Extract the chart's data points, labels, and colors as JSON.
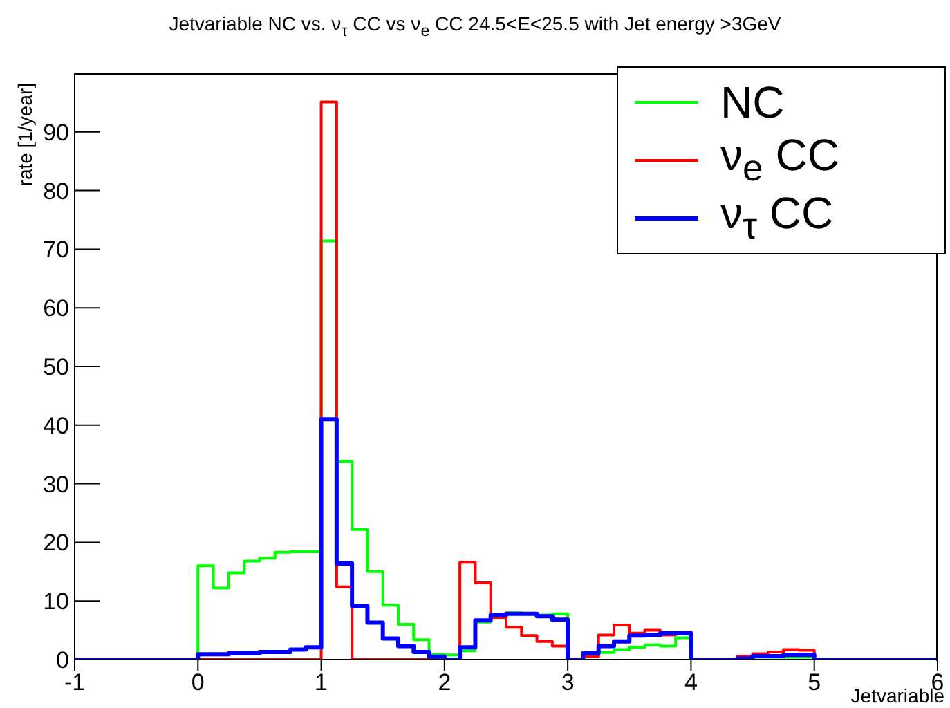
{
  "chart_data": {
    "type": "histogram",
    "title": "Jetvariable NC vs. ν$_{τ}$ CC vs ν$_{e}$ CC 24.5<E<25.5 with Jet energy >3GeV",
    "xlabel": "Jetvariable",
    "ylabel": "rate [1/year]",
    "bins": [
      -1,
      -0.875,
      -0.75,
      -0.625,
      -0.5,
      -0.375,
      -0.25,
      -0.125,
      0,
      0.125,
      0.25,
      0.375,
      0.5,
      0.625,
      0.75,
      0.875,
      1,
      1.125,
      1.25,
      1.375,
      1.5,
      1.625,
      1.75,
      1.875,
      2,
      2.125,
      2.25,
      2.375,
      2.5,
      2.625,
      2.75,
      2.875,
      3,
      3.125,
      3.25,
      3.375,
      3.5,
      3.625,
      3.75,
      3.875,
      4,
      4.125,
      4.25,
      4.375,
      4.5,
      4.625,
      4.75,
      4.875,
      5,
      5.125,
      5.25,
      5.375,
      5.5,
      5.625,
      5.75,
      5.875,
      6
    ],
    "series": [
      {
        "name": "NC",
        "color": "#00ff00",
        "values": [
          0,
          0,
          0,
          0,
          0,
          0,
          0,
          0,
          16.0,
          12.2,
          14.8,
          16.8,
          17.3,
          18.3,
          18.4,
          18.4,
          71.4,
          33.8,
          22.2,
          15.0,
          9.3,
          6.0,
          3.4,
          0.9,
          0.8,
          1.5,
          6.4,
          7.2,
          8.0,
          7.8,
          7.6,
          7.8,
          0,
          0.5,
          1.2,
          1.7,
          2.1,
          2.5,
          2.3,
          3.7,
          0,
          0,
          0,
          0,
          0.4,
          0.4,
          0.4,
          0.4,
          0,
          0,
          0,
          0,
          0,
          0,
          0,
          0
        ]
      },
      {
        "name": "ν$_{e}$ CC",
        "color": "#ff0000",
        "values": [
          0,
          0,
          0,
          0,
          0,
          0,
          0,
          0,
          0,
          0,
          0,
          0,
          0,
          0,
          0,
          0,
          95.1,
          12.4,
          0,
          0,
          0,
          0,
          0,
          0,
          0,
          16.6,
          13.1,
          7.2,
          5.5,
          4.1,
          3.1,
          2.3,
          0,
          0.5,
          4.2,
          5.9,
          4.5,
          5.0,
          4.2,
          4.6,
          0,
          0,
          0,
          0.6,
          1.0,
          1.3,
          1.7,
          1.6,
          0,
          0,
          0,
          0,
          0,
          0,
          0,
          0
        ]
      },
      {
        "name": "ν$_{τ}$ CC",
        "color": "#0000ff",
        "values": [
          0,
          0,
          0,
          0,
          0,
          0,
          0,
          0,
          0.9,
          0.9,
          1.1,
          1.1,
          1.3,
          1.3,
          1.7,
          2.1,
          41.0,
          16.4,
          9.1,
          6.3,
          3.6,
          2.3,
          1.3,
          0.5,
          0,
          2.1,
          6.7,
          7.6,
          7.8,
          7.8,
          7.4,
          6.8,
          0,
          1.1,
          2.3,
          3.1,
          4.1,
          4.2,
          4.5,
          4.5,
          0,
          0,
          0,
          0.2,
          0.6,
          0.6,
          0.8,
          0.8,
          0,
          0,
          0,
          0,
          0,
          0,
          0,
          0
        ]
      }
    ],
    "xlim": [
      -1,
      6
    ],
    "xticks": [
      -1,
      0,
      1,
      2,
      3,
      4,
      5,
      6
    ],
    "ylim": [
      0,
      100
    ],
    "yticks": [
      0,
      10,
      20,
      30,
      40,
      50,
      60,
      70,
      80,
      90
    ],
    "legend": "top right",
    "grid": false
  }
}
